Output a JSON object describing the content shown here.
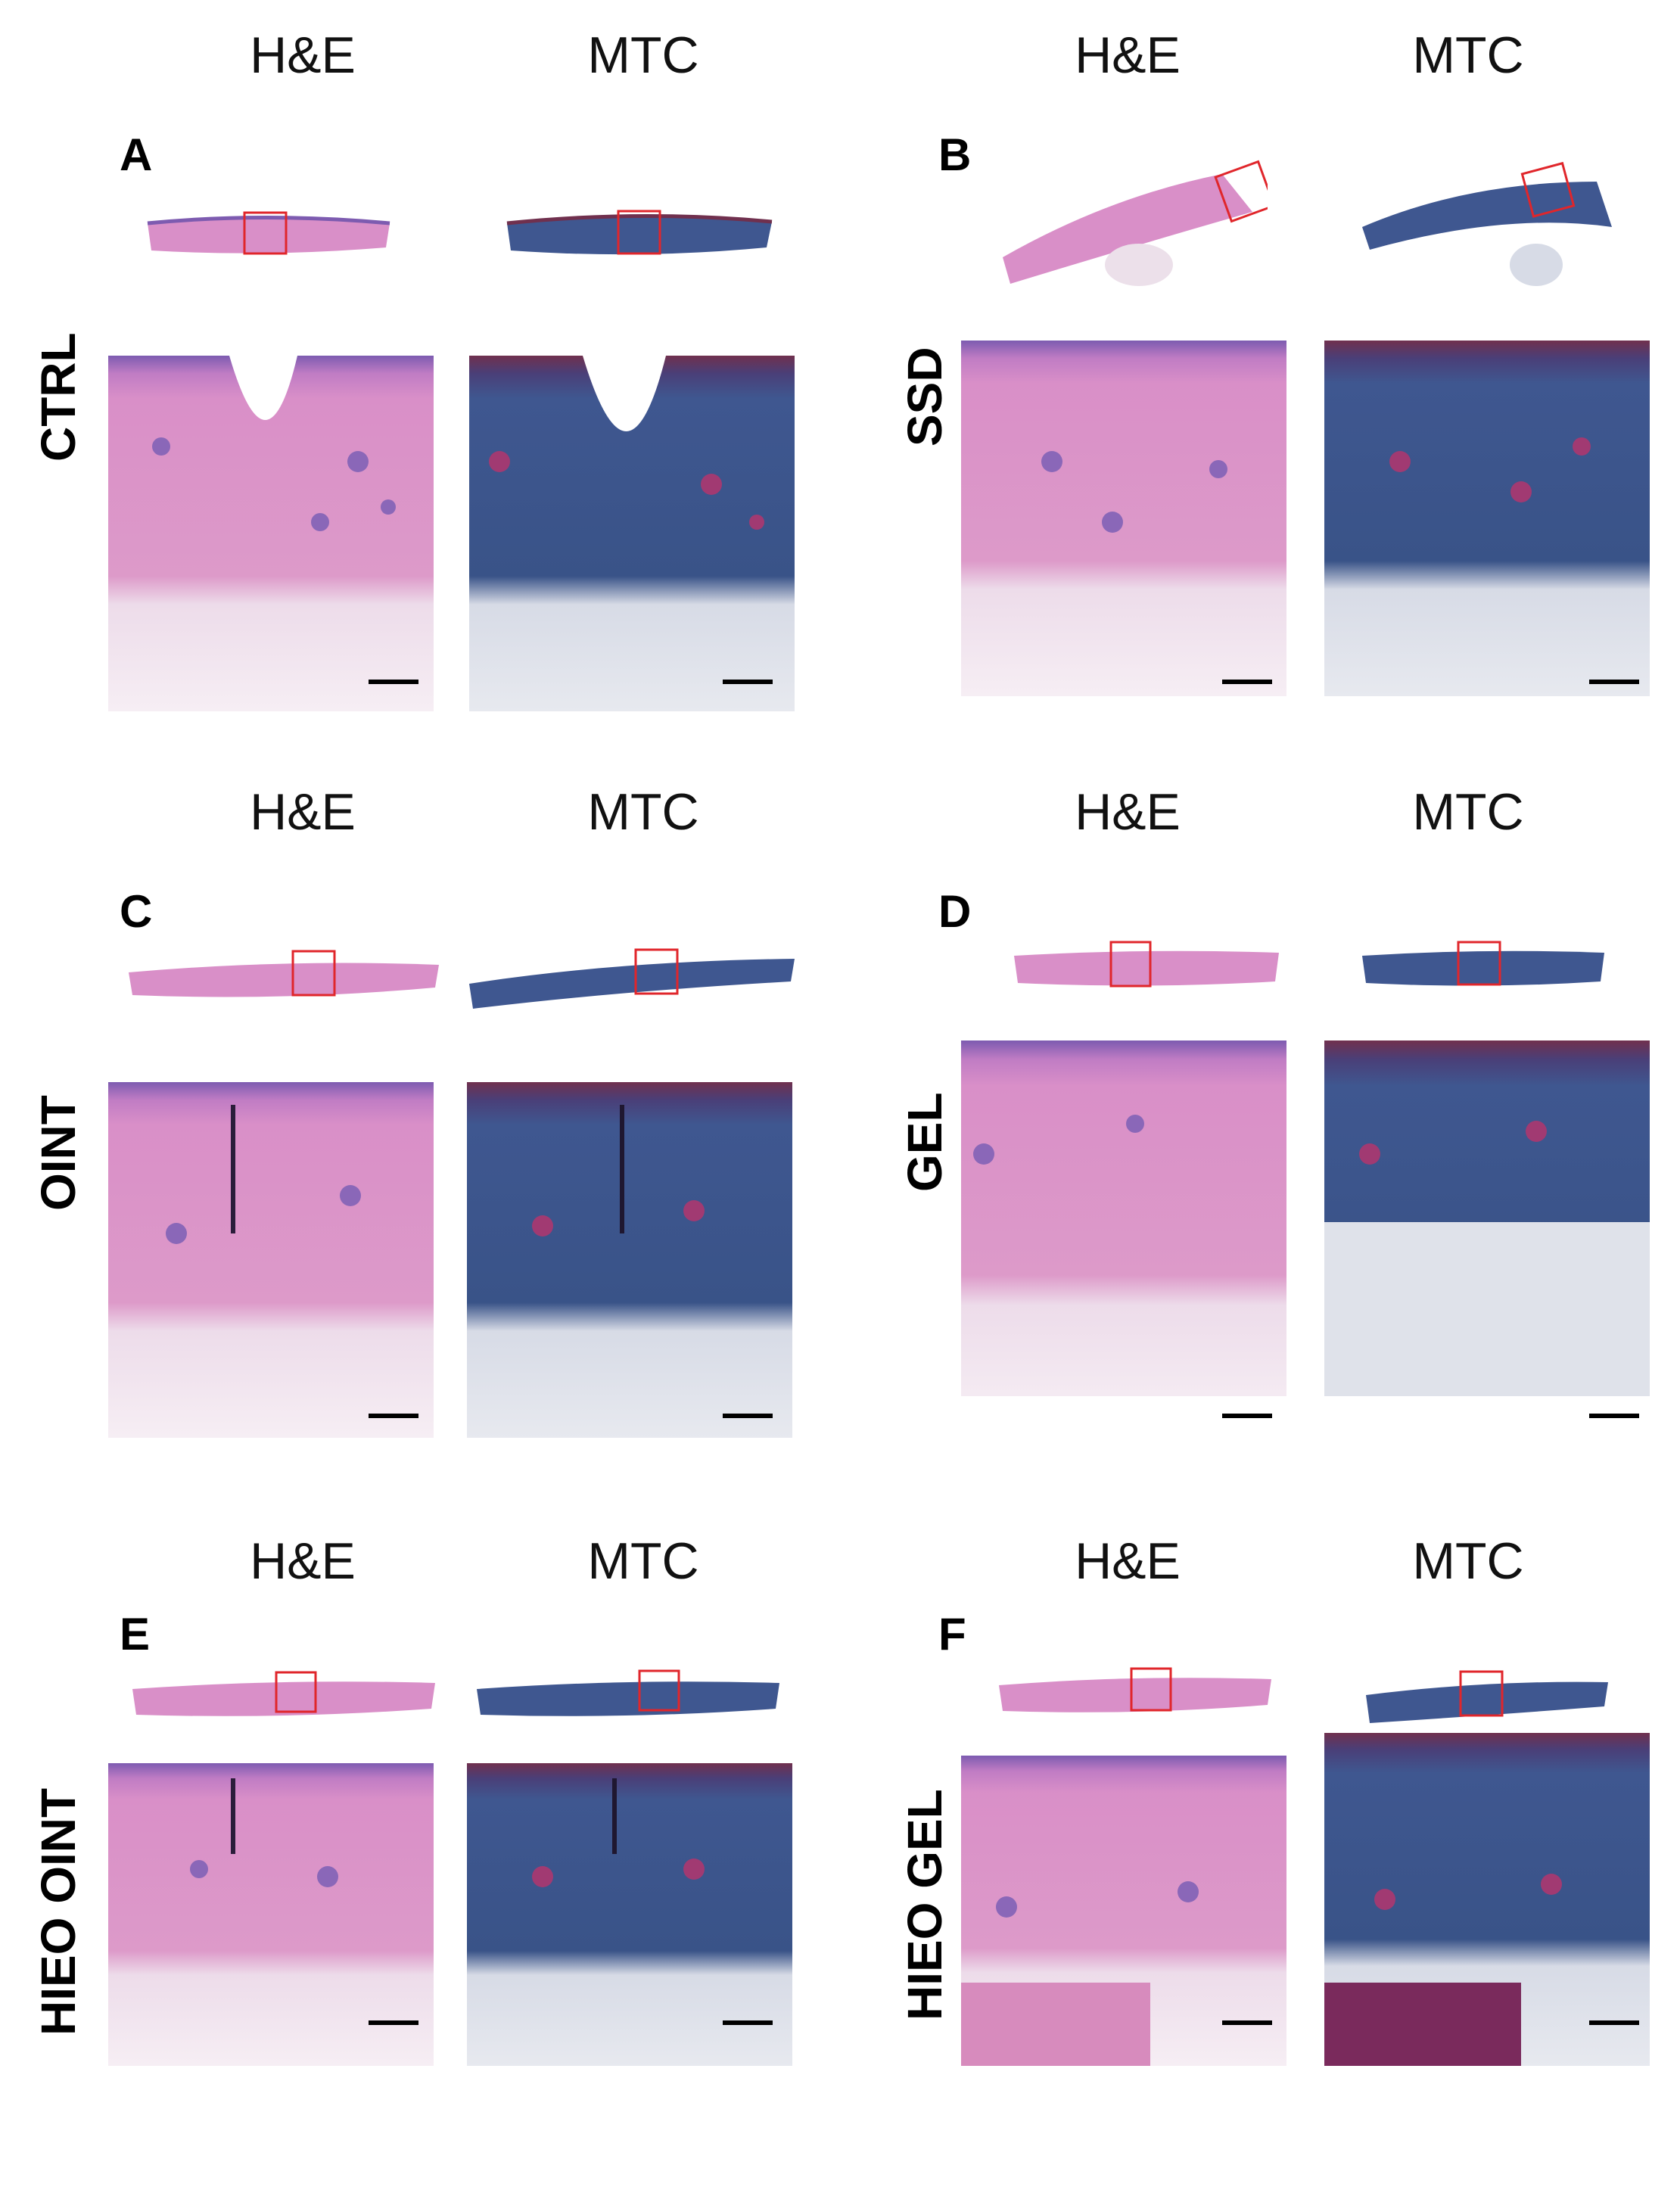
{
  "stains": {
    "he": "H&E",
    "mtc": "MTC"
  },
  "panels": [
    {
      "letter": "A",
      "group": "CTRL"
    },
    {
      "letter": "B",
      "group": "SSD"
    },
    {
      "letter": "C",
      "group": "OINT"
    },
    {
      "letter": "D",
      "group": "GEL"
    },
    {
      "letter": "E",
      "group": "HIEO OINT"
    },
    {
      "letter": "F",
      "group": "HIEO GEL"
    }
  ],
  "colors": {
    "he_tissue": "#d98fc8",
    "he_epidermis": "#7d5bb0",
    "he_hypodermis": "#f1e4ef",
    "mtc_tissue": "#3f5790",
    "mtc_epidermis": "#70304e",
    "mtc_hypodermis": "#dfe2ea",
    "roi_box": "#e0262b"
  }
}
